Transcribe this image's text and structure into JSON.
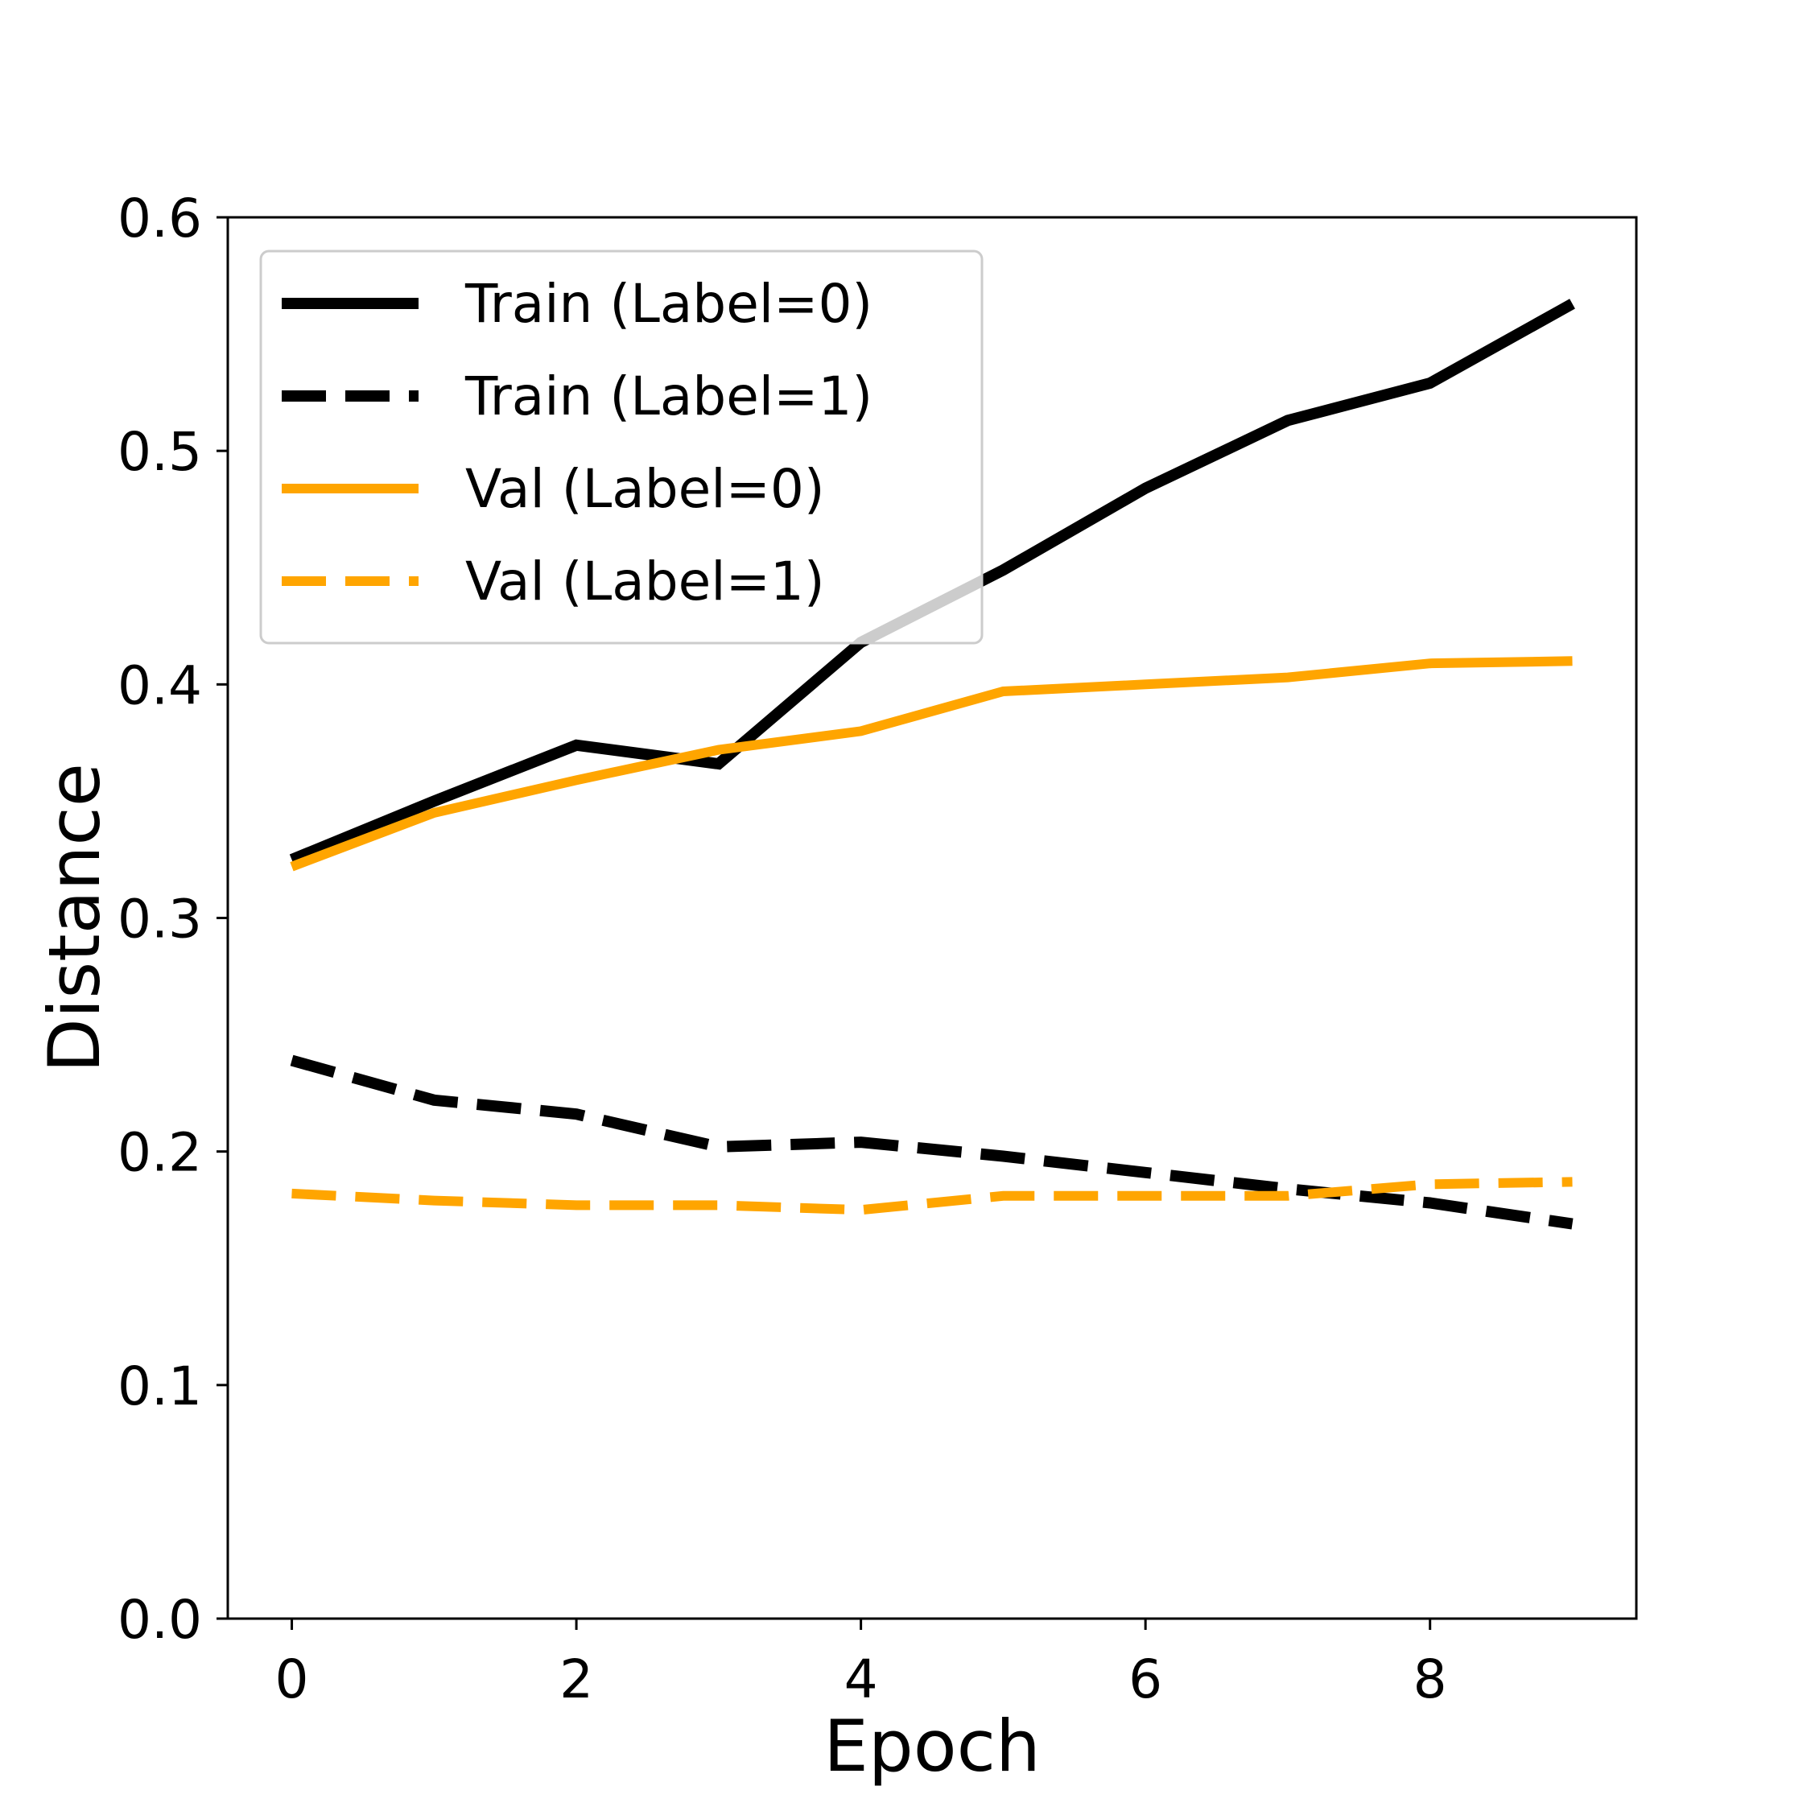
{
  "chart_data": {
    "type": "line",
    "title": "",
    "xlabel": "Epoch",
    "ylabel": "Distance",
    "xlim": [
      -0.45,
      9.45
    ],
    "ylim": [
      0.0,
      0.6
    ],
    "xticks": [
      0,
      2,
      4,
      6,
      8
    ],
    "xtick_labels": [
      "0",
      "2",
      "4",
      "6",
      "8"
    ],
    "yticks": [
      0.0,
      0.1,
      0.2,
      0.3,
      0.4,
      0.5,
      0.6
    ],
    "ytick_labels": [
      "0.0",
      "0.1",
      "0.2",
      "0.3",
      "0.4",
      "0.5",
      "0.6"
    ],
    "grid": false,
    "legend_position": "upper-left",
    "x": [
      0,
      1,
      2,
      3,
      4,
      5,
      6,
      7,
      8,
      9
    ],
    "series": [
      {
        "name": "Train (Label=0)",
        "color": "#000000",
        "style": "solid",
        "values": [
          0.325,
          0.35,
          0.374,
          0.366,
          0.418,
          0.449,
          0.484,
          0.513,
          0.529,
          0.563
        ]
      },
      {
        "name": "Train (Label=1)",
        "color": "#000000",
        "style": "dashed",
        "values": [
          0.239,
          0.222,
          0.216,
          0.202,
          0.204,
          0.198,
          0.191,
          0.184,
          0.178,
          0.169
        ]
      },
      {
        "name": "Val (Label=0)",
        "color": "#ffa500",
        "style": "solid",
        "values": [
          0.322,
          0.345,
          0.359,
          0.372,
          0.38,
          0.397,
          0.4,
          0.403,
          0.409,
          0.41
        ]
      },
      {
        "name": "Val (Label=1)",
        "color": "#ffa500",
        "style": "dashed",
        "values": [
          0.182,
          0.179,
          0.177,
          0.177,
          0.175,
          0.181,
          0.181,
          0.181,
          0.186,
          0.187
        ]
      }
    ]
  }
}
